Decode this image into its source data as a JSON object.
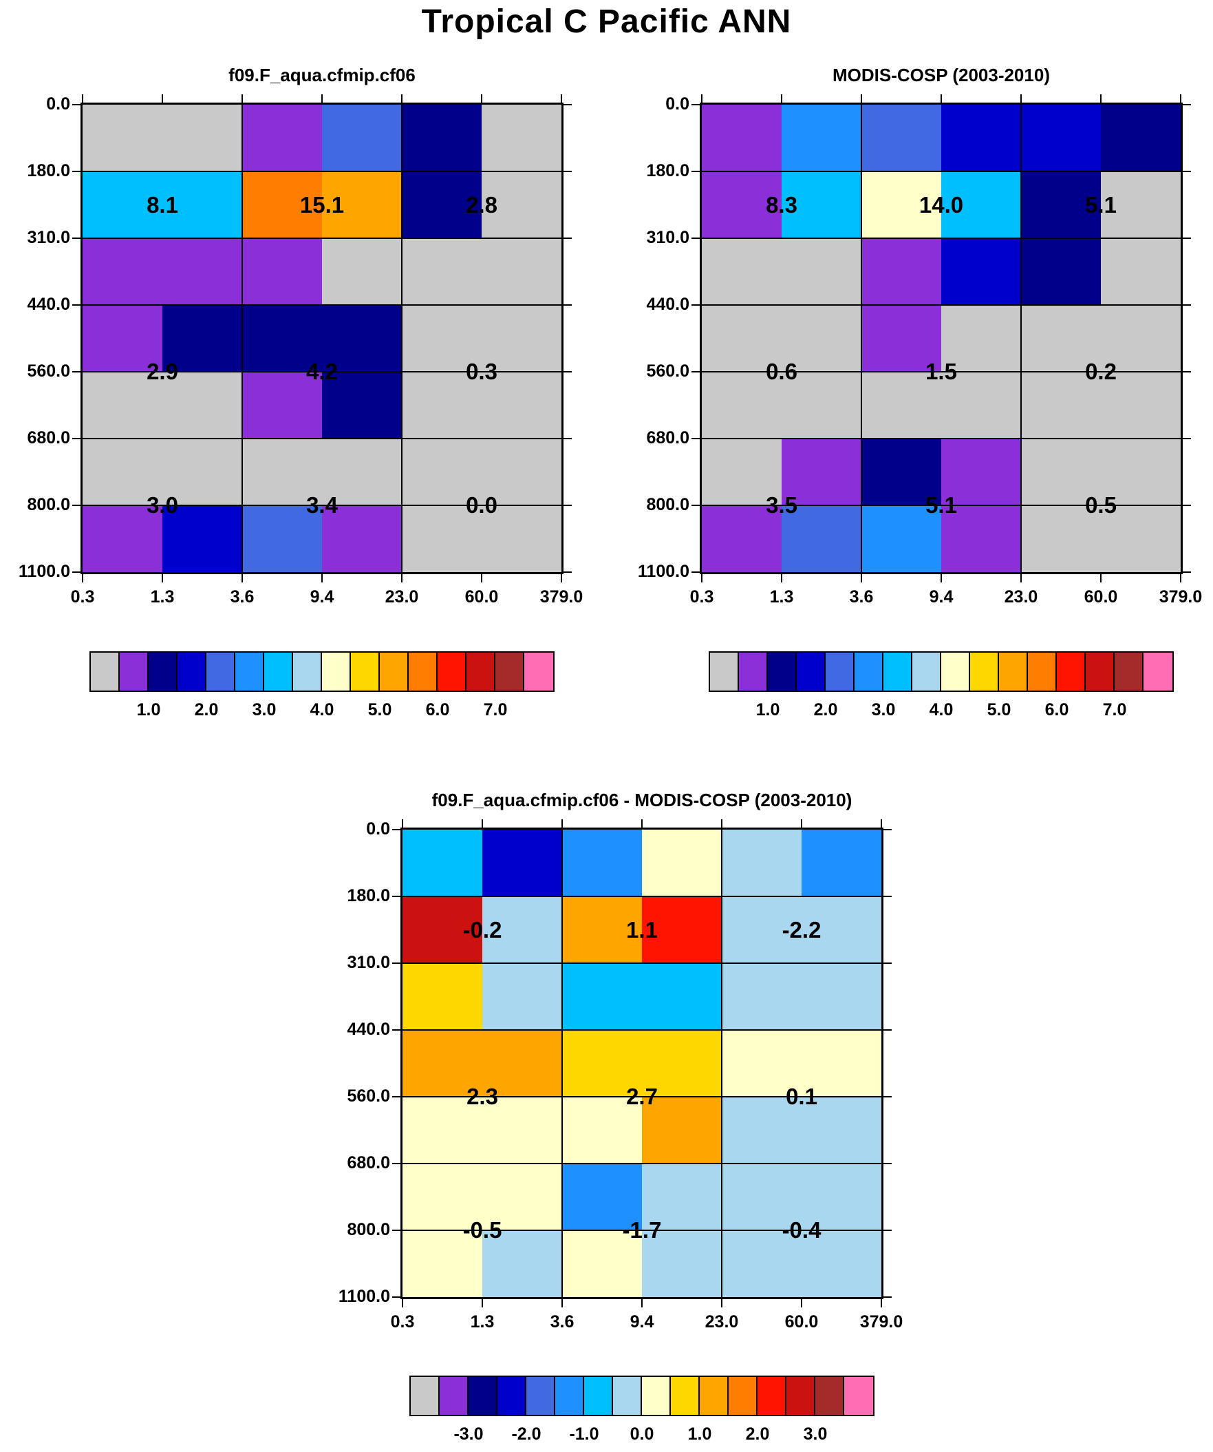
{
  "page": {
    "title": "Tropical C Pacific ANN"
  },
  "palette": [
    "#C9C9C9",
    "#8B2FD9",
    "#00008B",
    "#0000CD",
    "#4169E1",
    "#1E90FF",
    "#00BFFF",
    "#A9D7F0",
    "#FFFFC9",
    "#FFD700",
    "#FFA500",
    "#FF7D00",
    "#FF1400",
    "#CC1111",
    "#A52A2A",
    "#FF6EB4"
  ],
  "chart_data": [
    {
      "type": "heatmap",
      "title": "f09.F_aqua.cfmip.cf06",
      "x_ticks": [
        "0.3",
        "1.3",
        "3.6",
        "9.4",
        "23.0",
        "60.0",
        "379.0"
      ],
      "y_ticks": [
        "0.0",
        "180.0",
        "310.0",
        "440.0",
        "560.0",
        "680.0",
        "800.0",
        "1100.0"
      ],
      "cells": [
        [
          0,
          0,
          1,
          4,
          2,
          0
        ],
        [
          6,
          6,
          11,
          10,
          2,
          0
        ],
        [
          1,
          1,
          1,
          0,
          0,
          0
        ],
        [
          1,
          2,
          2,
          2,
          0,
          0
        ],
        [
          0,
          0,
          1,
          2,
          0,
          0
        ],
        [
          0,
          0,
          0,
          0,
          0,
          0
        ],
        [
          1,
          3,
          4,
          1,
          0,
          0
        ]
      ],
      "block_labels": [
        {
          "y_frac": 0.2143,
          "values": [
            "8.1",
            "15.1",
            "2.8"
          ]
        },
        {
          "y_frac": 0.5714,
          "values": [
            "2.9",
            "4.2",
            "0.3"
          ]
        },
        {
          "y_frac": 0.8571,
          "values": [
            "3.0",
            "3.4",
            "0.0"
          ]
        }
      ],
      "colorbar": {
        "labels": [
          "1.0",
          "2.0",
          "3.0",
          "4.0",
          "5.0",
          "6.0",
          "7.0"
        ],
        "position": "bottom"
      }
    },
    {
      "type": "heatmap",
      "title": "MODIS-COSP (2003-2010)",
      "x_ticks": [
        "0.3",
        "1.3",
        "3.6",
        "9.4",
        "23.0",
        "60.0",
        "379.0"
      ],
      "y_ticks": [
        "0.0",
        "180.0",
        "310.0",
        "440.0",
        "560.0",
        "680.0",
        "800.0",
        "1100.0"
      ],
      "cells": [
        [
          1,
          5,
          4,
          3,
          3,
          2
        ],
        [
          1,
          6,
          8,
          6,
          2,
          0
        ],
        [
          0,
          0,
          1,
          3,
          2,
          0
        ],
        [
          0,
          0,
          1,
          0,
          0,
          0
        ],
        [
          0,
          0,
          0,
          0,
          0,
          0
        ],
        [
          0,
          1,
          2,
          1,
          0,
          0
        ],
        [
          1,
          4,
          5,
          1,
          0,
          0
        ]
      ],
      "block_labels": [
        {
          "y_frac": 0.2143,
          "values": [
            "8.3",
            "14.0",
            "5.1"
          ]
        },
        {
          "y_frac": 0.5714,
          "values": [
            "0.6",
            "1.5",
            "0.2"
          ]
        },
        {
          "y_frac": 0.8571,
          "values": [
            "3.5",
            "5.1",
            "0.5"
          ]
        }
      ],
      "colorbar": {
        "labels": [
          "1.0",
          "2.0",
          "3.0",
          "4.0",
          "5.0",
          "6.0",
          "7.0"
        ],
        "position": "bottom"
      }
    },
    {
      "type": "heatmap",
      "title": "f09.F_aqua.cfmip.cf06 - MODIS-COSP (2003-2010)",
      "x_ticks": [
        "0.3",
        "1.3",
        "3.6",
        "9.4",
        "23.0",
        "60.0",
        "379.0"
      ],
      "y_ticks": [
        "0.0",
        "180.0",
        "310.0",
        "440.0",
        "560.0",
        "680.0",
        "800.0",
        "1100.0"
      ],
      "cells": [
        [
          6,
          3,
          5,
          8,
          7,
          5
        ],
        [
          13,
          7,
          10,
          12,
          7,
          7
        ],
        [
          9,
          7,
          6,
          6,
          7,
          7
        ],
        [
          10,
          10,
          9,
          9,
          8,
          8
        ],
        [
          8,
          8,
          8,
          10,
          7,
          7
        ],
        [
          8,
          8,
          5,
          7,
          7,
          7
        ],
        [
          8,
          7,
          8,
          7,
          7,
          7
        ]
      ],
      "block_labels": [
        {
          "y_frac": 0.2143,
          "values": [
            "-0.2",
            "1.1",
            "-2.2"
          ]
        },
        {
          "y_frac": 0.5714,
          "values": [
            "2.3",
            "2.7",
            "0.1"
          ]
        },
        {
          "y_frac": 0.8571,
          "values": [
            "-0.5",
            "-1.7",
            "-0.4"
          ]
        }
      ],
      "colorbar": {
        "labels": [
          "-3.0",
          "-2.0",
          "-1.0",
          "0.0",
          "1.0",
          "2.0",
          "3.0"
        ],
        "position": "bottom"
      }
    }
  ]
}
